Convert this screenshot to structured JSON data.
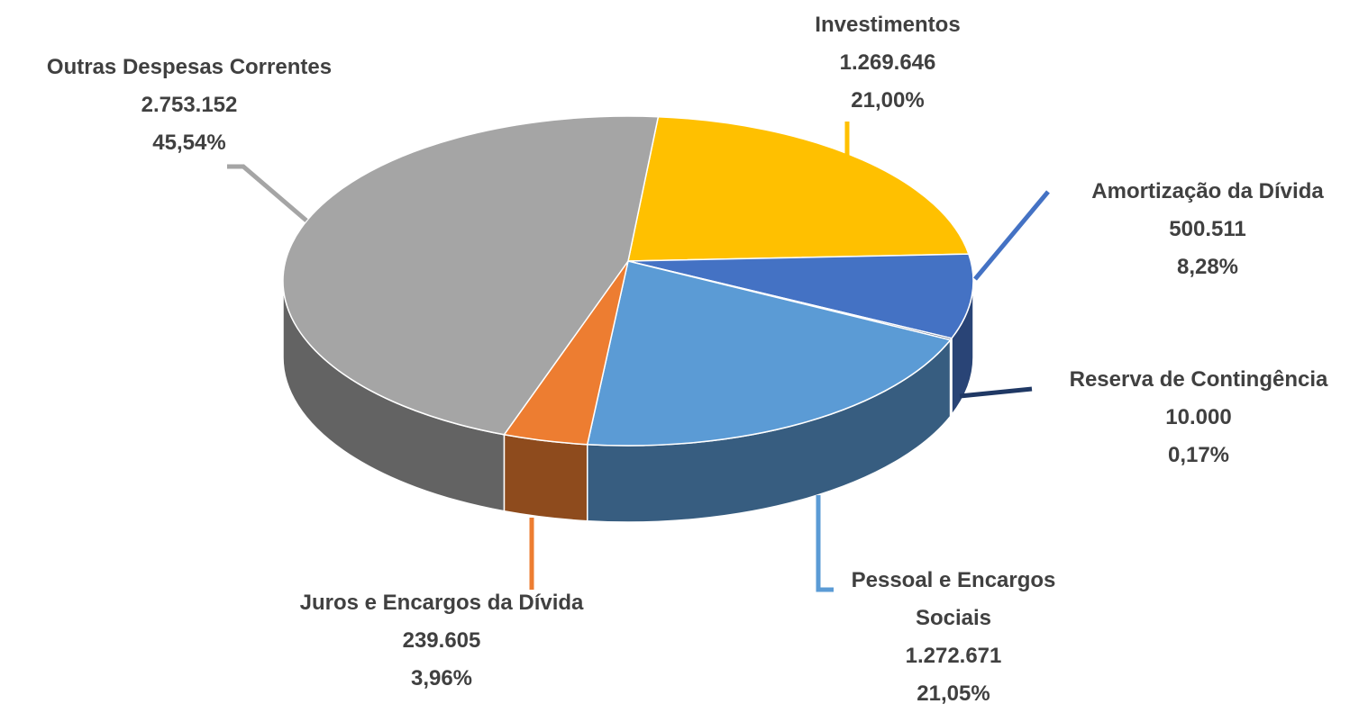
{
  "chart_data": {
    "type": "pie",
    "categories": [
      "Investimentos",
      "Amortização da Dívida",
      "Reserva de Contingência",
      "Pessoal e Encargos Sociais",
      "Juros e Encargos da Dívida",
      "Outras Despesas Correntes"
    ],
    "values": [
      1269646,
      500511,
      10000,
      1272671,
      239605,
      2753152
    ],
    "value_labels": [
      "1.269.646",
      "500.511",
      "10.000",
      "1.272.671",
      "239.605",
      "2.753.152"
    ],
    "percentages": [
      21.0,
      8.28,
      0.17,
      21.05,
      3.96,
      45.54
    ],
    "percentage_labels": [
      "21,00%",
      "8,28%",
      "0,17%",
      "21,05%",
      "3,96%",
      "45,54%"
    ],
    "colors": [
      "#ffc000",
      "#4472c4",
      "#1f3864",
      "#5b9bd5",
      "#ed7d31",
      "#a5a5a5"
    ]
  }
}
